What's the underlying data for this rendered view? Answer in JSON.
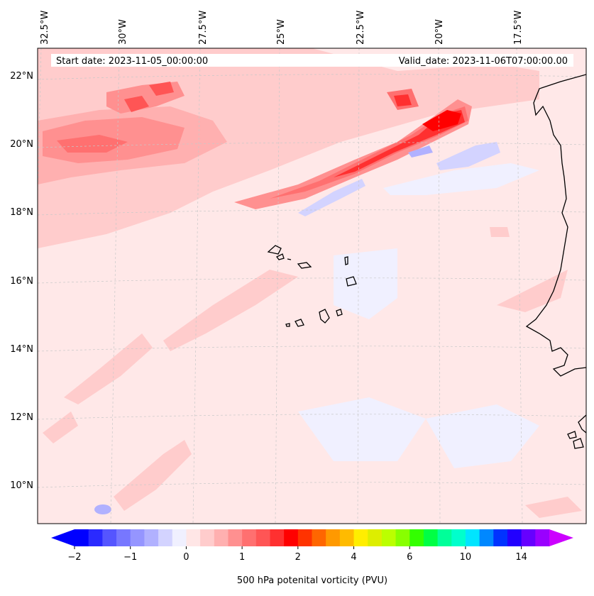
{
  "header": {
    "start_label": "Start date: 2023-11-05_00:00:00",
    "valid_label": "Valid_date: 2023-11-06T07:00:00.00"
  },
  "axes": {
    "lon_labels": [
      "32.5°W",
      "30°W",
      "27.5°W",
      "25°W",
      "22.5°W",
      "20°W",
      "17.5°W"
    ],
    "lat_labels": [
      "22°N",
      "20°N",
      "18°N",
      "16°N",
      "14°N",
      "12°N",
      "10°N"
    ]
  },
  "colorbar": {
    "label": "500 hPa potenital vorticity (PVU)",
    "ticks": [
      "−2",
      "−1",
      "0",
      "1",
      "2",
      "4",
      "6",
      "10",
      "14"
    ],
    "colors": [
      "#0000ff",
      "#2a2aff",
      "#5555ff",
      "#7777ff",
      "#9595ff",
      "#b1b1ff",
      "#d3d3ff",
      "#f0f0ff",
      "#ffe6e6",
      "#ffcccc",
      "#ffb0b0",
      "#ff9090",
      "#ff7070",
      "#ff5555",
      "#ff3030",
      "#ff0000",
      "#ff3300",
      "#ff6600",
      "#ff9900",
      "#ffbb00",
      "#ffee00",
      "#ddee00",
      "#bbff00",
      "#88ff00",
      "#33ff00",
      "#00ff44",
      "#00ff99",
      "#00ffcc",
      "#00e5ff",
      "#0088ff",
      "#0033ff",
      "#2200ff",
      "#6600ff",
      "#9900ff"
    ],
    "extend_low_color": "#0000ff",
    "extend_high_color": "#cc00ff"
  },
  "map": {
    "background_color": "#ffe8e8",
    "coast_color": "#000000"
  }
}
